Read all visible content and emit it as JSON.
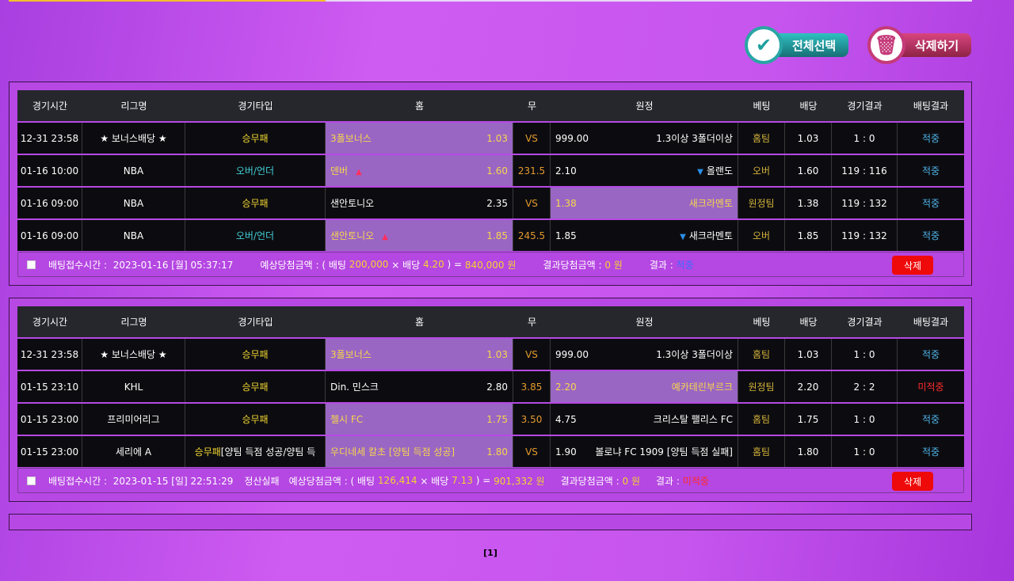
{
  "toolbar": {
    "select_all": "전체선택",
    "delete": "삭제하기"
  },
  "columns": [
    "경기시간",
    "리그명",
    "경기타입",
    "홈",
    "무",
    "원정",
    "베팅",
    "배당",
    "경기결과",
    "배팅결과"
  ],
  "slips": [
    {
      "rows": [
        {
          "time": "12-31 23:58",
          "league": "★ 보너스배당 ★",
          "type": "승무패",
          "type_extra": "",
          "home": "3폴보너스",
          "home_odds": "1.03",
          "draw": "VS",
          "away_odds": "999.00",
          "away": "1.3이상 3폴더이상",
          "bet": "홈팀",
          "odds": "1.03",
          "score": "1 : 0",
          "result": "적중"
        },
        {
          "time": "01-16 10:00",
          "league": "NBA",
          "type": "오버/언더",
          "type_extra": "",
          "home": "덴버",
          "home_odds": "1.60",
          "draw": "231.5",
          "away_odds": "2.10",
          "away": "올랜도",
          "bet": "오버",
          "odds": "1.60",
          "score": "119 : 116",
          "result": "적중"
        },
        {
          "time": "01-16 09:00",
          "league": "NBA",
          "type": "승무패",
          "type_extra": "",
          "home": "샌안토니오",
          "home_odds": "2.35",
          "draw": "VS",
          "away_odds": "1.38",
          "away": "새크라멘토",
          "bet": "원정팀",
          "odds": "1.38",
          "score": "119 : 132",
          "result": "적중"
        },
        {
          "time": "01-16 09:00",
          "league": "NBA",
          "type": "오버/언더",
          "type_extra": "",
          "home": "샌안토니오",
          "home_odds": "1.85",
          "draw": "245.5",
          "away_odds": "1.85",
          "away": "새크라멘토",
          "bet": "오버",
          "odds": "1.85",
          "score": "119 : 132",
          "result": "적중"
        }
      ],
      "footer": {
        "time_label": "배팅접수시간 :",
        "time": "2023-01-16 [월] 05:37:17",
        "expected_label": "예상당첨금액 : ( 배팅",
        "stake": "200,000",
        "times": "× 배당",
        "total_odds": "4.20",
        "eq": ") =",
        "expected": "840,000 원",
        "won_label": "결과당첨금액 :",
        "won": "0 원",
        "result_label": "결과 :",
        "result": "적중",
        "overlay": "",
        "delete": "삭제"
      }
    },
    {
      "rows": [
        {
          "time": "12-31 23:58",
          "league": "★ 보너스배당 ★",
          "type": "승무패",
          "type_extra": "",
          "home": "3폴보너스",
          "home_odds": "1.03",
          "draw": "VS",
          "away_odds": "999.00",
          "away": "1.3이상 3폴더이상",
          "bet": "홈팀",
          "odds": "1.03",
          "score": "1 : 0",
          "result": "적중"
        },
        {
          "time": "01-15 23:10",
          "league": "KHL",
          "type": "승무패",
          "type_extra": "",
          "home": "Din. 민스크",
          "home_odds": "2.80",
          "draw": "3.85",
          "away_odds": "2.20",
          "away": "예카테린부르크",
          "bet": "원정팀",
          "odds": "2.20",
          "score": "2 : 2",
          "result": "미적중"
        },
        {
          "time": "01-15 23:00",
          "league": "프리미어리그",
          "type": "승무패",
          "type_extra": "",
          "home": "첼시 FC",
          "home_odds": "1.75",
          "draw": "3.50",
          "away_odds": "4.75",
          "away": "크리스탈 팰리스 FC",
          "bet": "홈팀",
          "odds": "1.75",
          "score": "1 : 0",
          "result": "적중"
        },
        {
          "time": "01-15 23:00",
          "league": "세리에 A",
          "type": "승무패",
          "type_extra": " [양팀 득점 성공/양팀 득",
          "home": "우디네세 칼초 [양팀 득점 성공]",
          "home_odds": "1.80",
          "draw": "VS",
          "away_odds": "1.90",
          "away": "볼로냐 FC 1909 [양팀 득점 실패]",
          "bet": "홈팀",
          "odds": "1.80",
          "score": "1 : 0",
          "result": "적중"
        }
      ],
      "footer": {
        "time_label": "배팅접수시간 :",
        "time": "2023-01-15 [일] 22:51:29",
        "expected_label": "예상당첨금액 : ( 배팅",
        "stake": "126,414",
        "times": "× 배당",
        "total_odds": "7.13",
        "eq": ") =",
        "expected": "901,332 원",
        "won_label": "결과당첨금액 :",
        "won": "0 원",
        "result_label": "결과 :",
        "result": "미적중",
        "overlay": "정산실패",
        "delete": "삭제"
      }
    }
  ],
  "pager": "[1]",
  "colors": {
    "picked": "#9966c4",
    "win": "#4fb4e8",
    "lose": "#ff2a2a",
    "yellow": "#f2d630",
    "delete": "#ee0a0a"
  }
}
